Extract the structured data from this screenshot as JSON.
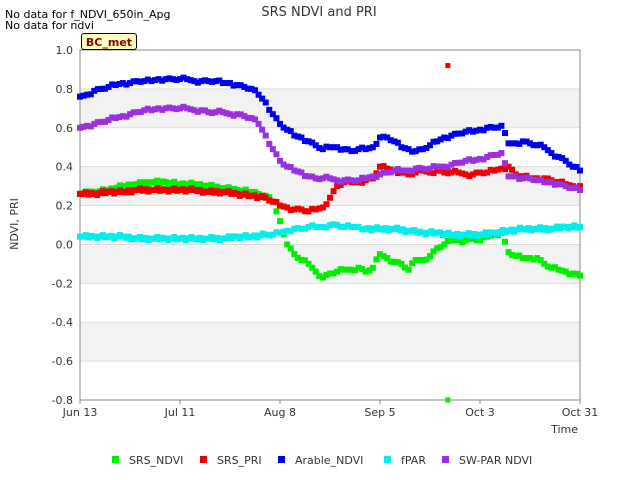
{
  "notes": [
    "No data for f_NDVI_650in_Apg",
    "No data for ndvi"
  ],
  "site_tag": "BC_met",
  "chart_data": {
    "type": "scatter",
    "title": "SRS NDVI and PRI",
    "xlabel": "Time",
    "ylabel": "NDVI, PRI",
    "xlim": [
      "Jun 13",
      "Oct 31"
    ],
    "ylim": [
      -0.8,
      1.0
    ],
    "x_tick_labels": [
      "Jun 13",
      "Jul 11",
      "Aug 8",
      "Sep 5",
      "Oct 3",
      "Oct 31"
    ],
    "x_tick_days": [
      0,
      28,
      56,
      84,
      112,
      140
    ],
    "y_tick_labels": [
      "1.0",
      "0.8",
      "0.6",
      "0.4",
      "0.2",
      "0.0",
      "-0.2",
      "-0.4",
      "-0.6",
      "-0.8"
    ],
    "y_ticks": [
      1.0,
      0.8,
      0.6,
      0.4,
      0.2,
      0.0,
      -0.2,
      -0.4,
      -0.6,
      -0.8
    ],
    "grid": "alternating horizontal bands",
    "legend_position": "bottom",
    "series": [
      {
        "name": "SRS_NDVI",
        "color": "#00ee00",
        "points": [
          [
            0,
            0.26
          ],
          [
            4,
            0.27
          ],
          [
            8,
            0.28
          ],
          [
            12,
            0.3
          ],
          [
            16,
            0.31
          ],
          [
            20,
            0.32
          ],
          [
            24,
            0.32
          ],
          [
            28,
            0.31
          ],
          [
            32,
            0.31
          ],
          [
            36,
            0.3
          ],
          [
            40,
            0.29
          ],
          [
            44,
            0.28
          ],
          [
            48,
            0.27
          ],
          [
            50,
            0.26
          ],
          [
            52,
            0.25
          ],
          [
            54,
            0.22
          ],
          [
            56,
            0.12
          ],
          [
            58,
            0.0
          ],
          [
            60,
            -0.05
          ],
          [
            62,
            -0.08
          ],
          [
            64,
            -0.1
          ],
          [
            66,
            -0.14
          ],
          [
            68,
            -0.17
          ],
          [
            70,
            -0.15
          ],
          [
            72,
            -0.14
          ],
          [
            74,
            -0.13
          ],
          [
            76,
            -0.13
          ],
          [
            78,
            -0.12
          ],
          [
            80,
            -0.14
          ],
          [
            82,
            -0.12
          ],
          [
            84,
            -0.05
          ],
          [
            86,
            -0.07
          ],
          [
            88,
            -0.09
          ],
          [
            90,
            -0.1
          ],
          [
            92,
            -0.13
          ],
          [
            94,
            -0.08
          ],
          [
            96,
            -0.08
          ],
          [
            98,
            -0.06
          ],
          [
            100,
            -0.02
          ],
          [
            102,
            0.0
          ],
          [
            104,
            0.02
          ],
          [
            106,
            0.02
          ],
          [
            108,
            0.02
          ],
          [
            110,
            0.03
          ],
          [
            112,
            0.02
          ],
          [
            114,
            0.04
          ],
          [
            116,
            0.05
          ],
          [
            118,
            0.06
          ],
          [
            120,
            -0.04
          ],
          [
            122,
            -0.06
          ],
          [
            124,
            -0.07
          ],
          [
            126,
            -0.07
          ],
          [
            128,
            -0.07
          ],
          [
            130,
            -0.1
          ],
          [
            132,
            -0.12
          ],
          [
            134,
            -0.13
          ],
          [
            136,
            -0.14
          ],
          [
            138,
            -0.15
          ],
          [
            140,
            -0.16
          ]
        ]
      },
      {
        "name": "SRS_PRI",
        "color": "#ee0000",
        "points": [
          [
            0,
            0.26
          ],
          [
            4,
            0.26
          ],
          [
            8,
            0.27
          ],
          [
            12,
            0.27
          ],
          [
            16,
            0.28
          ],
          [
            20,
            0.28
          ],
          [
            24,
            0.28
          ],
          [
            28,
            0.28
          ],
          [
            32,
            0.28
          ],
          [
            36,
            0.27
          ],
          [
            40,
            0.27
          ],
          [
            44,
            0.26
          ],
          [
            48,
            0.25
          ],
          [
            52,
            0.24
          ],
          [
            54,
            0.22
          ],
          [
            56,
            0.2
          ],
          [
            58,
            0.19
          ],
          [
            60,
            0.18
          ],
          [
            62,
            0.18
          ],
          [
            64,
            0.17
          ],
          [
            66,
            0.18
          ],
          [
            68,
            0.19
          ],
          [
            70,
            0.24
          ],
          [
            72,
            0.3
          ],
          [
            74,
            0.32
          ],
          [
            76,
            0.32
          ],
          [
            78,
            0.32
          ],
          [
            80,
            0.33
          ],
          [
            82,
            0.34
          ],
          [
            84,
            0.4
          ],
          [
            86,
            0.39
          ],
          [
            88,
            0.38
          ],
          [
            90,
            0.37
          ],
          [
            92,
            0.36
          ],
          [
            94,
            0.37
          ],
          [
            96,
            0.38
          ],
          [
            98,
            0.37
          ],
          [
            100,
            0.38
          ],
          [
            102,
            0.37
          ],
          [
            104,
            0.37
          ],
          [
            106,
            0.37
          ],
          [
            108,
            0.36
          ],
          [
            110,
            0.36
          ],
          [
            112,
            0.37
          ],
          [
            114,
            0.37
          ],
          [
            116,
            0.38
          ],
          [
            118,
            0.39
          ],
          [
            120,
            0.4
          ],
          [
            122,
            0.36
          ],
          [
            124,
            0.35
          ],
          [
            126,
            0.34
          ],
          [
            128,
            0.34
          ],
          [
            130,
            0.34
          ],
          [
            132,
            0.33
          ],
          [
            134,
            0.32
          ],
          [
            136,
            0.31
          ],
          [
            138,
            0.3
          ],
          [
            140,
            0.3
          ]
        ]
      },
      {
        "name": "Arable_NDVI",
        "color": "#0000ee",
        "points": [
          [
            0,
            0.76
          ],
          [
            2,
            0.77
          ],
          [
            4,
            0.79
          ],
          [
            6,
            0.8
          ],
          [
            8,
            0.81
          ],
          [
            10,
            0.82
          ],
          [
            12,
            0.83
          ],
          [
            14,
            0.83
          ],
          [
            16,
            0.84
          ],
          [
            18,
            0.84
          ],
          [
            20,
            0.84
          ],
          [
            22,
            0.85
          ],
          [
            24,
            0.85
          ],
          [
            26,
            0.85
          ],
          [
            28,
            0.85
          ],
          [
            30,
            0.85
          ],
          [
            32,
            0.84
          ],
          [
            34,
            0.84
          ],
          [
            36,
            0.84
          ],
          [
            38,
            0.84
          ],
          [
            40,
            0.83
          ],
          [
            42,
            0.83
          ],
          [
            44,
            0.82
          ],
          [
            46,
            0.81
          ],
          [
            48,
            0.8
          ],
          [
            50,
            0.77
          ],
          [
            52,
            0.73
          ],
          [
            54,
            0.67
          ],
          [
            56,
            0.62
          ],
          [
            58,
            0.59
          ],
          [
            60,
            0.56
          ],
          [
            62,
            0.55
          ],
          [
            64,
            0.53
          ],
          [
            66,
            0.51
          ],
          [
            68,
            0.49
          ],
          [
            70,
            0.5
          ],
          [
            72,
            0.5
          ],
          [
            74,
            0.49
          ],
          [
            76,
            0.48
          ],
          [
            78,
            0.49
          ],
          [
            80,
            0.49
          ],
          [
            82,
            0.5
          ],
          [
            84,
            0.55
          ],
          [
            86,
            0.55
          ],
          [
            88,
            0.53
          ],
          [
            90,
            0.5
          ],
          [
            92,
            0.49
          ],
          [
            94,
            0.48
          ],
          [
            96,
            0.49
          ],
          [
            98,
            0.51
          ],
          [
            100,
            0.53
          ],
          [
            102,
            0.55
          ],
          [
            104,
            0.56
          ],
          [
            106,
            0.57
          ],
          [
            108,
            0.58
          ],
          [
            110,
            0.58
          ],
          [
            112,
            0.59
          ],
          [
            114,
            0.6
          ],
          [
            116,
            0.6
          ],
          [
            118,
            0.61
          ],
          [
            120,
            0.52
          ],
          [
            122,
            0.52
          ],
          [
            124,
            0.53
          ],
          [
            126,
            0.52
          ],
          [
            128,
            0.51
          ],
          [
            130,
            0.5
          ],
          [
            132,
            0.47
          ],
          [
            134,
            0.45
          ],
          [
            136,
            0.43
          ],
          [
            138,
            0.4
          ],
          [
            140,
            0.38
          ]
        ]
      },
      {
        "name": "fPAR",
        "color": "#00eeee",
        "points": [
          [
            0,
            0.04
          ],
          [
            4,
            0.04
          ],
          [
            8,
            0.04
          ],
          [
            12,
            0.04
          ],
          [
            16,
            0.03
          ],
          [
            20,
            0.03
          ],
          [
            24,
            0.03
          ],
          [
            28,
            0.03
          ],
          [
            32,
            0.03
          ],
          [
            36,
            0.03
          ],
          [
            40,
            0.03
          ],
          [
            44,
            0.04
          ],
          [
            48,
            0.04
          ],
          [
            52,
            0.05
          ],
          [
            54,
            0.05
          ],
          [
            56,
            0.06
          ],
          [
            58,
            0.07
          ],
          [
            60,
            0.08
          ],
          [
            62,
            0.08
          ],
          [
            64,
            0.09
          ],
          [
            66,
            0.09
          ],
          [
            68,
            0.09
          ],
          [
            70,
            0.1
          ],
          [
            72,
            0.1
          ],
          [
            74,
            0.09
          ],
          [
            76,
            0.09
          ],
          [
            78,
            0.09
          ],
          [
            80,
            0.08
          ],
          [
            84,
            0.08
          ],
          [
            88,
            0.08
          ],
          [
            92,
            0.07
          ],
          [
            96,
            0.06
          ],
          [
            100,
            0.06
          ],
          [
            104,
            0.05
          ],
          [
            108,
            0.05
          ],
          [
            112,
            0.05
          ],
          [
            116,
            0.06
          ],
          [
            120,
            0.07
          ],
          [
            124,
            0.08
          ],
          [
            128,
            0.08
          ],
          [
            132,
            0.08
          ],
          [
            136,
            0.09
          ],
          [
            140,
            0.09
          ]
        ]
      },
      {
        "name": "SW-PAR NDVI",
        "color": "#9b30e0",
        "points": [
          [
            0,
            0.6
          ],
          [
            2,
            0.61
          ],
          [
            4,
            0.62
          ],
          [
            6,
            0.63
          ],
          [
            8,
            0.64
          ],
          [
            10,
            0.65
          ],
          [
            12,
            0.66
          ],
          [
            14,
            0.67
          ],
          [
            16,
            0.68
          ],
          [
            18,
            0.69
          ],
          [
            20,
            0.69
          ],
          [
            22,
            0.7
          ],
          [
            24,
            0.7
          ],
          [
            26,
            0.7
          ],
          [
            28,
            0.7
          ],
          [
            30,
            0.7
          ],
          [
            32,
            0.69
          ],
          [
            34,
            0.69
          ],
          [
            36,
            0.68
          ],
          [
            38,
            0.68
          ],
          [
            40,
            0.68
          ],
          [
            42,
            0.67
          ],
          [
            44,
            0.67
          ],
          [
            46,
            0.66
          ],
          [
            48,
            0.65
          ],
          [
            50,
            0.62
          ],
          [
            52,
            0.56
          ],
          [
            54,
            0.49
          ],
          [
            56,
            0.43
          ],
          [
            58,
            0.4
          ],
          [
            60,
            0.38
          ],
          [
            62,
            0.37
          ],
          [
            64,
            0.35
          ],
          [
            66,
            0.34
          ],
          [
            68,
            0.34
          ],
          [
            70,
            0.34
          ],
          [
            72,
            0.33
          ],
          [
            74,
            0.33
          ],
          [
            76,
            0.33
          ],
          [
            78,
            0.33
          ],
          [
            80,
            0.34
          ],
          [
            82,
            0.35
          ],
          [
            84,
            0.36
          ],
          [
            86,
            0.37
          ],
          [
            88,
            0.38
          ],
          [
            90,
            0.38
          ],
          [
            92,
            0.38
          ],
          [
            94,
            0.39
          ],
          [
            96,
            0.39
          ],
          [
            98,
            0.39
          ],
          [
            100,
            0.4
          ],
          [
            102,
            0.4
          ],
          [
            104,
            0.41
          ],
          [
            106,
            0.42
          ],
          [
            108,
            0.43
          ],
          [
            110,
            0.43
          ],
          [
            112,
            0.44
          ],
          [
            114,
            0.45
          ],
          [
            116,
            0.46
          ],
          [
            118,
            0.47
          ],
          [
            120,
            0.35
          ],
          [
            122,
            0.35
          ],
          [
            124,
            0.34
          ],
          [
            126,
            0.34
          ],
          [
            128,
            0.33
          ],
          [
            130,
            0.32
          ],
          [
            132,
            0.32
          ],
          [
            134,
            0.31
          ],
          [
            136,
            0.3
          ],
          [
            138,
            0.29
          ],
          [
            140,
            0.28
          ]
        ]
      }
    ],
    "outliers": [
      {
        "series": "SRS_PRI",
        "x": 103,
        "y": 0.92
      },
      {
        "series": "SRS_NDVI",
        "x": 103,
        "y": -0.8
      }
    ]
  }
}
